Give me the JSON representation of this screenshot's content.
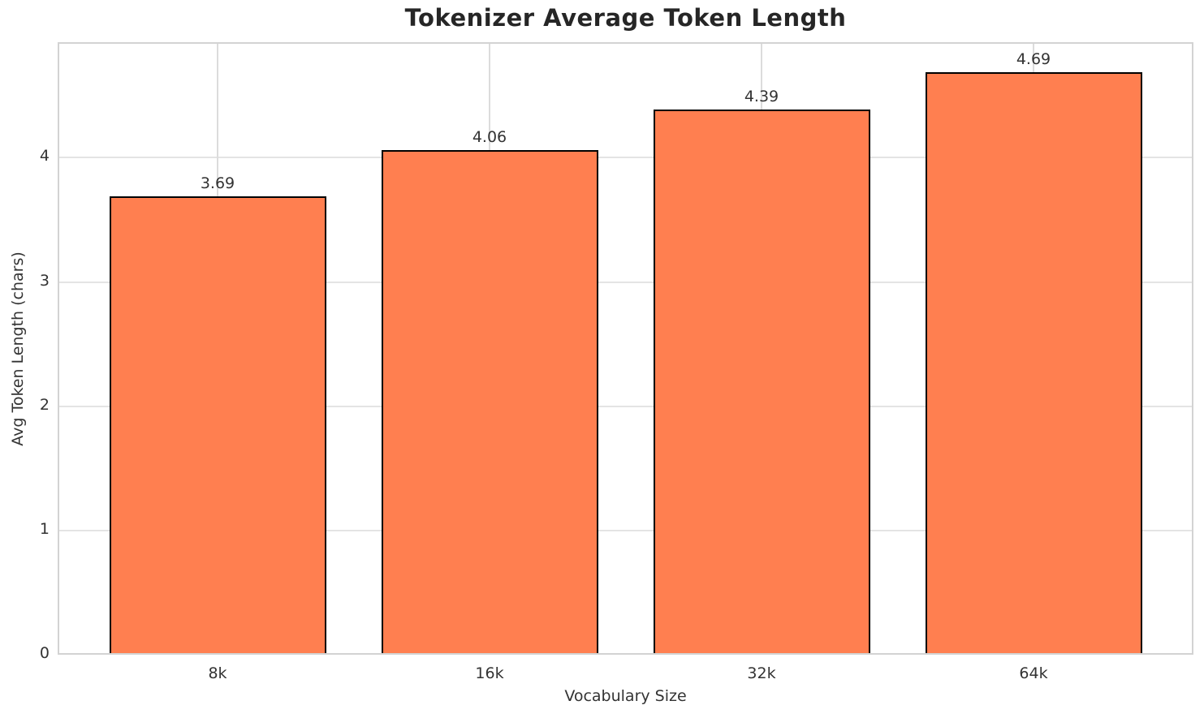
{
  "chart_data": {
    "type": "bar",
    "title": "Tokenizer Average Token Length",
    "xlabel": "Vocabulary Size",
    "ylabel": "Avg Token Length (chars)",
    "categories": [
      "8k",
      "16k",
      "32k",
      "64k"
    ],
    "values": [
      3.69,
      4.06,
      4.39,
      4.69
    ],
    "value_labels": [
      "3.69",
      "4.06",
      "4.39",
      "4.69"
    ],
    "yticks": [
      0,
      1,
      2,
      3,
      4
    ],
    "ytick_labels": [
      "0",
      "1",
      "2",
      "3",
      "4"
    ],
    "ylim": [
      0,
      4.93
    ],
    "grid": true,
    "legend": "none",
    "colors": {
      "bar_fill": "#FF7F50",
      "bar_edge": "#000000",
      "grid_horizontal": "#e4e4e4",
      "grid_vertical": "#dcdcdc",
      "spine": "#d3d3d3",
      "title_text": "#262626",
      "tick_text": "#333333",
      "background": "#ffffff"
    }
  }
}
